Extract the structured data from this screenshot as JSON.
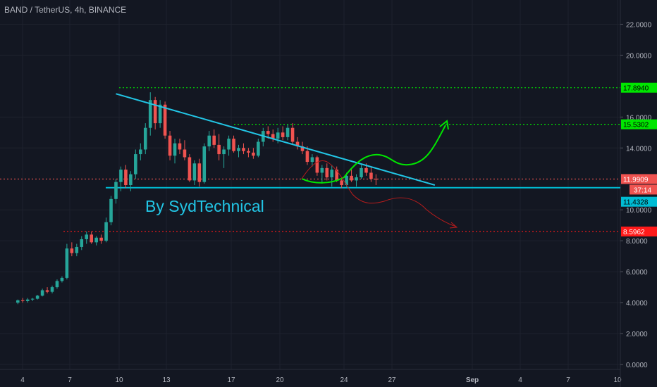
{
  "header": {
    "title": "BAND / TetherUS, 4h, BINANCE"
  },
  "annotation": {
    "text": "By SydTechnical"
  },
  "colors": {
    "background": "#131722",
    "grid": "#1e222d",
    "up": "#26a69a",
    "down": "#ef5350",
    "cyan": "#00bcd4",
    "green_level": "#00e600",
    "red_level": "#ff1a1a",
    "axis_text": "#b2b5be"
  },
  "chart_data": {
    "type": "candlestick",
    "y_axis": {
      "ticks": [
        22,
        20,
        16,
        14,
        10,
        8,
        6,
        4,
        2,
        0
      ],
      "tick_labels": [
        "22.0000",
        "20.0000",
        "16.0000",
        "14.0000",
        "10.0000",
        "8.0000",
        "6.0000",
        "4.0000",
        "2.0000",
        "0.0000"
      ],
      "ylim": [
        -0.2,
        23.3
      ]
    },
    "x_axis": {
      "tick_labels": [
        "4",
        "7",
        "10",
        "13",
        "17",
        "20",
        "24",
        "27",
        "Sep",
        "4",
        "7",
        "10"
      ]
    },
    "price_levels": [
      {
        "label": "17.8940",
        "value": 17.894,
        "style": "dotted",
        "color": "#00e600"
      },
      {
        "label": "15.5302",
        "value": 15.5302,
        "style": "dotted",
        "color": "#00e600"
      },
      {
        "label": "11.9909",
        "value": 11.9909,
        "style": "dotted",
        "color": "#ef5350"
      },
      {
        "label": "11.4328",
        "value": 11.4328,
        "style": "solid",
        "color": "#00bcd4"
      },
      {
        "label": "8.5962",
        "value": 8.5962,
        "style": "dotted",
        "color": "#ff1a1a"
      }
    ],
    "countdown_label": "37:14",
    "trendline": {
      "start": {
        "day": 10.0,
        "value": 17.5
      },
      "end": {
        "day": 29.5,
        "value": 11.6
      }
    },
    "support_line": {
      "value": 11.4328
    },
    "candles": [
      [
        4.0,
        4.0,
        4.2,
        3.9,
        4.15
      ],
      [
        4.3,
        4.15,
        4.3,
        4.0,
        4.1
      ],
      [
        4.6,
        4.1,
        4.3,
        4.0,
        4.2
      ],
      [
        4.9,
        4.2,
        4.3,
        4.1,
        4.25
      ],
      [
        5.2,
        4.25,
        4.5,
        4.2,
        4.45
      ],
      [
        5.5,
        4.45,
        4.9,
        4.4,
        4.8
      ],
      [
        5.8,
        4.8,
        5.0,
        4.6,
        4.7
      ],
      [
        6.1,
        4.7,
        5.1,
        4.6,
        5.0
      ],
      [
        6.4,
        5.0,
        5.5,
        4.9,
        5.4
      ],
      [
        6.7,
        5.4,
        5.7,
        5.3,
        5.6
      ],
      [
        7.0,
        5.6,
        7.8,
        5.5,
        7.5
      ],
      [
        7.3,
        7.5,
        7.9,
        7.0,
        7.2
      ],
      [
        7.6,
        7.2,
        7.8,
        7.0,
        7.6
      ],
      [
        7.9,
        7.6,
        8.3,
        7.4,
        8.1
      ],
      [
        8.2,
        8.1,
        8.6,
        7.8,
        8.4
      ],
      [
        8.5,
        8.4,
        8.6,
        7.8,
        7.9
      ],
      [
        8.8,
        7.9,
        8.3,
        7.7,
        8.2
      ],
      [
        9.1,
        8.2,
        8.4,
        7.8,
        8.0
      ],
      [
        9.4,
        8.0,
        9.5,
        7.9,
        9.2
      ],
      [
        9.7,
        9.2,
        10.9,
        9.0,
        10.7
      ],
      [
        10.0,
        10.7,
        12.0,
        10.4,
        11.8
      ],
      [
        10.3,
        11.8,
        12.8,
        11.2,
        12.6
      ],
      [
        10.6,
        12.6,
        12.9,
        11.4,
        11.6
      ],
      [
        10.9,
        11.6,
        12.5,
        11.2,
        12.3
      ],
      [
        11.2,
        12.3,
        13.9,
        12.0,
        13.6
      ],
      [
        11.5,
        13.6,
        14.3,
        13.2,
        13.9
      ],
      [
        11.8,
        13.9,
        15.6,
        13.6,
        15.3
      ],
      [
        12.1,
        15.3,
        17.6,
        14.8,
        17.1
      ],
      [
        12.4,
        17.1,
        17.3,
        15.2,
        15.6
      ],
      [
        12.7,
        15.6,
        17.1,
        15.3,
        16.8
      ],
      [
        13.0,
        16.8,
        17.0,
        14.6,
        14.8
      ],
      [
        13.3,
        14.8,
        15.1,
        13.2,
        13.5
      ],
      [
        13.6,
        13.5,
        14.6,
        13.0,
        14.3
      ],
      [
        13.9,
        14.3,
        14.6,
        13.6,
        13.9
      ],
      [
        14.2,
        13.9,
        14.5,
        13.2,
        13.4
      ],
      [
        14.5,
        13.4,
        13.6,
        11.8,
        11.9
      ],
      [
        14.8,
        11.9,
        13.2,
        11.6,
        13.0
      ],
      [
        15.1,
        13.0,
        13.3,
        11.5,
        11.8
      ],
      [
        15.4,
        11.8,
        14.3,
        11.7,
        14.1
      ],
      [
        15.7,
        14.1,
        15.1,
        13.8,
        14.8
      ],
      [
        16.0,
        14.8,
        15.2,
        14.0,
        14.2
      ],
      [
        16.3,
        14.2,
        14.9,
        13.2,
        13.6
      ],
      [
        16.6,
        13.6,
        14.1,
        12.7,
        13.9
      ],
      [
        16.9,
        13.9,
        14.8,
        13.5,
        14.6
      ],
      [
        17.2,
        14.6,
        14.8,
        13.7,
        13.8
      ],
      [
        17.5,
        13.8,
        14.2,
        13.4,
        14.0
      ],
      [
        17.8,
        14.0,
        14.3,
        13.6,
        13.8
      ],
      [
        18.1,
        13.8,
        14.0,
        13.4,
        13.7
      ],
      [
        18.4,
        13.7,
        14.0,
        13.3,
        13.5
      ],
      [
        18.7,
        13.5,
        14.6,
        13.4,
        14.4
      ],
      [
        19.0,
        14.4,
        15.3,
        14.1,
        15.1
      ],
      [
        19.3,
        15.1,
        15.4,
        14.6,
        14.9
      ],
      [
        19.6,
        14.9,
        15.2,
        14.4,
        14.6
      ],
      [
        19.9,
        14.6,
        15.3,
        14.3,
        15.0
      ],
      [
        20.2,
        15.0,
        15.4,
        14.5,
        14.7
      ],
      [
        20.5,
        14.7,
        15.5,
        14.5,
        15.3
      ],
      [
        20.8,
        15.3,
        15.6,
        14.2,
        14.4
      ],
      [
        21.1,
        14.4,
        14.7,
        13.9,
        14.1
      ],
      [
        21.4,
        14.1,
        14.4,
        13.6,
        13.8
      ],
      [
        21.7,
        13.8,
        14.1,
        12.9,
        13.1
      ],
      [
        22.0,
        13.1,
        13.6,
        12.8,
        13.4
      ],
      [
        22.3,
        13.4,
        13.5,
        12.2,
        12.4
      ],
      [
        22.6,
        12.4,
        12.9,
        11.7,
        12.7
      ],
      [
        22.9,
        12.7,
        13.0,
        11.9,
        12.1
      ],
      [
        23.2,
        12.1,
        12.9,
        11.5,
        12.6
      ],
      [
        23.5,
        12.6,
        12.8,
        11.8,
        11.9
      ],
      [
        23.8,
        11.9,
        12.1,
        11.4,
        11.6
      ],
      [
        24.1,
        11.6,
        12.4,
        11.5,
        12.2
      ],
      [
        24.4,
        12.2,
        12.6,
        11.8,
        11.9
      ],
      [
        24.7,
        11.9,
        12.3,
        11.5,
        12.1
      ],
      [
        25.0,
        12.1,
        12.9,
        12.0,
        12.7
      ],
      [
        25.3,
        12.7,
        13.0,
        12.2,
        12.4
      ],
      [
        25.6,
        12.4,
        12.8,
        11.8,
        12.0
      ],
      [
        25.9,
        12.0,
        12.3,
        11.6,
        11.99
      ]
    ]
  }
}
